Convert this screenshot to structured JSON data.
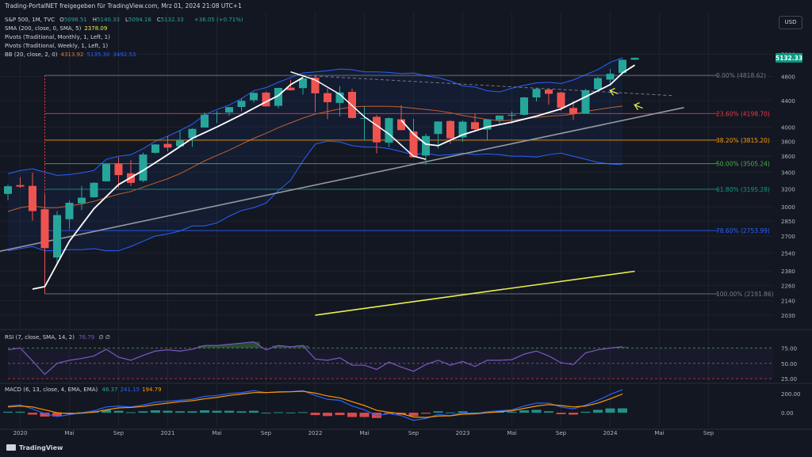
{
  "topbar": {
    "text": "Trading-PortalNET freigegeben für TradingView.com, Mrz 01, 2024 21:08 UTC+1"
  },
  "currency_button": "USD",
  "header": {
    "symbol": "S&P 500, 1M, TVC",
    "ohlc": [
      {
        "k": "O",
        "v": "5098.51"
      },
      {
        "k": "H",
        "v": "5140.33"
      },
      {
        "k": "L",
        "v": "5094.16"
      },
      {
        "k": "C",
        "v": "5132.33"
      }
    ],
    "change": "+36.05 (+0.71%)",
    "indicators": [
      {
        "label": "SMA (200, close, 0, SMA, 5)",
        "values": [
          {
            "v": "2378.09",
            "color": "#e8f04a"
          }
        ]
      },
      {
        "label": "Pivots (Traditional, Monthly, 1, Left, 1)",
        "values": []
      },
      {
        "label": "Pivots (Traditional, Weekly, 1, Left, 1)",
        "values": []
      },
      {
        "label": "BB (20, close, 2, 0)",
        "values": [
          {
            "v": "4313.92",
            "color": "#e0783c"
          },
          {
            "v": "5135.30",
            "color": "#2962ff"
          },
          {
            "v": "3492.53",
            "color": "#2962ff"
          }
        ]
      }
    ]
  },
  "rsi_header": {
    "label": "RSI (7, close, SMA, 14, 2)",
    "value": "76.79",
    "extra": "∅ ∅"
  },
  "macd_header": {
    "label": "MACD (6, 13, close, 4, EMA, EMA)",
    "values": [
      {
        "v": "46.37",
        "color": "#26a69a"
      },
      {
        "v": "241.15",
        "color": "#2962ff"
      },
      {
        "v": "194.79",
        "color": "#ff9800"
      }
    ]
  },
  "brand": "TradingView",
  "colors": {
    "up": "#26a69a",
    "down": "#ef5350",
    "background": "#131722",
    "grid": "#1e222d"
  },
  "chart_data": {
    "type": "candlestick",
    "symbol": "S&P 500",
    "interval": "1M",
    "y_scale": "log",
    "ylim": [
      1950,
      5560
    ],
    "y_ticks": [
      2030,
      2140,
      2260,
      2380,
      2540,
      2700,
      2850,
      3000,
      3200,
      3400,
      3600,
      3800,
      4000,
      4400,
      4800,
      5200
    ],
    "last_price": "5132.33",
    "x_labels": [
      "2020",
      "Mai",
      "Sep",
      "2021",
      "Mai",
      "Sep",
      "2022",
      "Mai",
      "Sep",
      "2023",
      "Mai",
      "Sep",
      "2024",
      "Mai",
      "Sep"
    ],
    "candles": [
      {
        "d": "2019-12",
        "o": 3143,
        "h": 3248,
        "l": 3070,
        "c": 3231
      },
      {
        "d": "2020-01",
        "o": 3244,
        "h": 3337,
        "l": 3214,
        "c": 3226
      },
      {
        "d": "2020-02",
        "o": 3235,
        "h": 3394,
        "l": 2855,
        "c": 2954
      },
      {
        "d": "2020-03",
        "o": 2974,
        "h": 3136,
        "l": 2192,
        "c": 2585
      },
      {
        "d": "2020-04",
        "o": 2499,
        "h": 2954,
        "l": 2447,
        "c": 2912
      },
      {
        "d": "2020-05",
        "o": 2869,
        "h": 3068,
        "l": 2767,
        "c": 3044
      },
      {
        "d": "2020-06",
        "o": 3038,
        "h": 3233,
        "l": 2965,
        "c": 3100
      },
      {
        "d": "2020-07",
        "o": 3105,
        "h": 3279,
        "l": 3101,
        "c": 3271
      },
      {
        "d": "2020-08",
        "o": 3289,
        "h": 3514,
        "l": 3284,
        "c": 3500
      },
      {
        "d": "2020-09",
        "o": 3508,
        "h": 3588,
        "l": 3209,
        "c": 3363
      },
      {
        "d": "2020-10",
        "o": 3385,
        "h": 3549,
        "l": 3233,
        "c": 3270
      },
      {
        "d": "2020-11",
        "o": 3296,
        "h": 3646,
        "l": 3279,
        "c": 3622
      },
      {
        "d": "2020-12",
        "o": 3645,
        "h": 3760,
        "l": 3633,
        "c": 3756
      },
      {
        "d": "2021-01",
        "o": 3764,
        "h": 3870,
        "l": 3662,
        "c": 3714
      },
      {
        "d": "2021-02",
        "o": 3731,
        "h": 3950,
        "l": 3725,
        "c": 3811
      },
      {
        "d": "2021-03",
        "o": 3842,
        "h": 3983,
        "l": 3723,
        "c": 3973
      },
      {
        "d": "2021-04",
        "o": 3992,
        "h": 4218,
        "l": 3992,
        "c": 4181
      },
      {
        "d": "2021-05",
        "o": 4192,
        "h": 4238,
        "l": 4056,
        "c": 4204
      },
      {
        "d": "2021-06",
        "o": 4216,
        "h": 4302,
        "l": 4164,
        "c": 4297
      },
      {
        "d": "2021-07",
        "o": 4300,
        "h": 4429,
        "l": 4233,
        "c": 4395
      },
      {
        "d": "2021-08",
        "o": 4406,
        "h": 4537,
        "l": 4367,
        "c": 4523
      },
      {
        "d": "2021-09",
        "o": 4528,
        "h": 4546,
        "l": 4305,
        "c": 4308
      },
      {
        "d": "2021-10",
        "o": 4317,
        "h": 4608,
        "l": 4279,
        "c": 4605
      },
      {
        "d": "2021-11",
        "o": 4610,
        "h": 4743,
        "l": 4560,
        "c": 4567
      },
      {
        "d": "2021-12",
        "o": 4602,
        "h": 4808,
        "l": 4495,
        "c": 4766
      },
      {
        "d": "2022-01",
        "o": 4779,
        "h": 4818,
        "l": 4222,
        "c": 4516
      },
      {
        "d": "2022-02",
        "o": 4519,
        "h": 4595,
        "l": 4115,
        "c": 4374
      },
      {
        "d": "2022-03",
        "o": 4363,
        "h": 4637,
        "l": 4157,
        "c": 4530
      },
      {
        "d": "2022-04",
        "o": 4540,
        "h": 4593,
        "l": 4124,
        "c": 4132
      },
      {
        "d": "2022-05",
        "o": 4131,
        "h": 4307,
        "l": 3811,
        "c": 4132
      },
      {
        "d": "2022-06",
        "o": 4149,
        "h": 4177,
        "l": 3637,
        "c": 3785
      },
      {
        "d": "2022-07",
        "o": 3781,
        "h": 4140,
        "l": 3721,
        "c": 4130
      },
      {
        "d": "2022-08",
        "o": 4113,
        "h": 4325,
        "l": 3955,
        "c": 3955
      },
      {
        "d": "2022-09",
        "o": 3936,
        "h": 4119,
        "l": 3584,
        "c": 3586
      },
      {
        "d": "2022-10",
        "o": 3609,
        "h": 3905,
        "l": 3491,
        "c": 3872
      },
      {
        "d": "2022-11",
        "o": 3901,
        "h": 4080,
        "l": 3698,
        "c": 4080
      },
      {
        "d": "2022-12",
        "o": 4087,
        "h": 4101,
        "l": 3764,
        "c": 3840
      },
      {
        "d": "2023-01",
        "o": 3853,
        "h": 4095,
        "l": 3795,
        "c": 4077
      },
      {
        "d": "2023-02",
        "o": 4070,
        "h": 4195,
        "l": 3943,
        "c": 3970
      },
      {
        "d": "2023-03",
        "o": 3963,
        "h": 4111,
        "l": 3809,
        "c": 4109
      },
      {
        "d": "2023-04",
        "o": 4102,
        "h": 4170,
        "l": 4049,
        "c": 4169
      },
      {
        "d": "2023-05",
        "o": 4166,
        "h": 4232,
        "l": 4048,
        "c": 4180
      },
      {
        "d": "2023-06",
        "o": 4180,
        "h": 4458,
        "l": 4167,
        "c": 4450
      },
      {
        "d": "2023-07",
        "o": 4450,
        "h": 4607,
        "l": 4385,
        "c": 4589
      },
      {
        "d": "2023-08",
        "o": 4578,
        "h": 4584,
        "l": 4335,
        "c": 4508
      },
      {
        "d": "2023-09",
        "o": 4530,
        "h": 4541,
        "l": 4238,
        "c": 4288
      },
      {
        "d": "2023-10",
        "o": 4284,
        "h": 4393,
        "l": 4103,
        "c": 4194
      },
      {
        "d": "2023-11",
        "o": 4201,
        "h": 4587,
        "l": 4198,
        "c": 4568
      },
      {
        "d": "2023-12",
        "o": 4581,
        "h": 4793,
        "l": 4547,
        "c": 4770
      },
      {
        "d": "2024-01",
        "o": 4745,
        "h": 4931,
        "l": 4682,
        "c": 4846
      },
      {
        "d": "2024-02",
        "o": 4861,
        "h": 5111,
        "l": 4854,
        "c": 5096
      },
      {
        "d": "2024-03",
        "o": 5098,
        "h": 5140,
        "l": 5094,
        "c": 5132
      }
    ],
    "fibonacci": [
      {
        "label": "0.00% (4818.62)",
        "value": 4818.62,
        "color": "#787b86"
      },
      {
        "label": "23.60% (4198.70)",
        "value": 4198.7,
        "color": "#f23645"
      },
      {
        "label": "38.20% (3815.20)",
        "value": 3815.2,
        "color": "#ff9800"
      },
      {
        "label": "50.00% (3505.24)",
        "value": 3505.24,
        "color": "#4caf50"
      },
      {
        "label": "61.80% (3195.28)",
        "value": 3195.28,
        "color": "#089981"
      },
      {
        "label": "78.60% (2753.99)",
        "value": 2753.99,
        "color": "#2962ff"
      },
      {
        "label": "100.00% (2191.86)",
        "value": 2191.86,
        "color": "#787b86"
      }
    ],
    "bb_upper": [
      3380,
      3420,
      3440,
      3400,
      3360,
      3370,
      3390,
      3420,
      3560,
      3600,
      3620,
      3700,
      3800,
      3870,
      3950,
      4040,
      4180,
      4260,
      4330,
      4430,
      4560,
      4610,
      4700,
      4780,
      4860,
      4880,
      4900,
      4930,
      4920,
      4880,
      4880,
      4870,
      4850,
      4860,
      4810,
      4780,
      4720,
      4640,
      4620,
      4560,
      4540,
      4600,
      4650,
      4690,
      4700,
      4680,
      4740,
      4830,
      4920,
      5050,
      5135
    ],
    "bb_mid": [
      2950,
      2990,
      3010,
      2990,
      2990,
      3010,
      3030,
      3060,
      3100,
      3140,
      3170,
      3220,
      3270,
      3320,
      3380,
      3460,
      3540,
      3610,
      3680,
      3760,
      3840,
      3910,
      3990,
      4060,
      4130,
      4190,
      4230,
      4270,
      4300,
      4310,
      4310,
      4310,
      4300,
      4280,
      4260,
      4240,
      4210,
      4170,
      4140,
      4110,
      4090,
      4100,
      4120,
      4140,
      4160,
      4170,
      4190,
      4230,
      4260,
      4290,
      4314
    ],
    "bb_lower": [
      2560,
      2580,
      2600,
      2560,
      2560,
      2570,
      2570,
      2580,
      2560,
      2560,
      2600,
      2650,
      2700,
      2720,
      2750,
      2800,
      2800,
      2830,
      2900,
      2960,
      2990,
      3040,
      3180,
      3300,
      3540,
      3760,
      3800,
      3790,
      3740,
      3720,
      3720,
      3700,
      3660,
      3620,
      3640,
      3610,
      3620,
      3640,
      3620,
      3630,
      3620,
      3600,
      3600,
      3590,
      3620,
      3640,
      3600,
      3560,
      3520,
      3500,
      3493
    ],
    "sma200_line": {
      "start": {
        "d": "2022-01",
        "v": 2030
      },
      "end": {
        "d": "2024-03",
        "v": 2378.09
      }
    },
    "trendline": {
      "start": {
        "d": "2018-12",
        "v": 2300
      },
      "end": {
        "d": "2024-07",
        "v": 4290
      }
    },
    "dashed_line": {
      "start": {
        "d": "2021-12",
        "v": 4818
      },
      "end": {
        "d": "2024-06",
        "v": 4480
      }
    },
    "rsi": {
      "ylim": [
        20,
        100
      ],
      "ticks": [
        25,
        50,
        75
      ],
      "values": [
        72,
        75,
        54,
        32,
        50,
        55,
        58,
        62,
        73,
        60,
        55,
        63,
        70,
        72,
        70,
        73,
        79,
        79,
        81,
        83,
        85,
        72,
        79,
        77,
        79,
        57,
        55,
        59,
        47,
        47,
        40,
        52,
        44,
        37,
        48,
        55,
        47,
        53,
        45,
        55,
        55,
        56,
        65,
        70,
        62,
        51,
        48,
        67,
        72,
        75,
        77
      ]
    },
    "macd": {
      "ylim": [
        -140,
        290
      ],
      "ticks": [
        0,
        200
      ],
      "macd": [
        70,
        80,
        40,
        -10,
        -40,
        -20,
        0,
        20,
        60,
        70,
        60,
        80,
        110,
        120,
        130,
        140,
        170,
        180,
        200,
        210,
        230,
        210,
        220,
        220,
        230,
        180,
        140,
        130,
        70,
        30,
        -30,
        -10,
        -30,
        -80,
        -60,
        -20,
        -30,
        0,
        -10,
        10,
        20,
        30,
        70,
        100,
        100,
        60,
        40,
        80,
        130,
        190,
        241
      ],
      "signal": [
        60,
        70,
        60,
        30,
        0,
        -10,
        -5,
        5,
        30,
        50,
        55,
        65,
        85,
        100,
        115,
        125,
        145,
        160,
        180,
        195,
        210,
        210,
        215,
        218,
        224,
        205,
        175,
        155,
        115,
        75,
        25,
        5,
        -10,
        -45,
        -50,
        -35,
        -33,
        -15,
        -12,
        0,
        10,
        20,
        45,
        70,
        85,
        75,
        60,
        70,
        100,
        145,
        195
      ],
      "histogram": [
        10,
        10,
        -20,
        -40,
        -40,
        -10,
        5,
        15,
        30,
        20,
        5,
        15,
        25,
        20,
        15,
        15,
        25,
        20,
        20,
        15,
        20,
        0,
        5,
        2,
        6,
        -25,
        -35,
        -25,
        -45,
        -45,
        -55,
        -15,
        -20,
        -35,
        -10,
        15,
        3,
        15,
        2,
        10,
        10,
        10,
        25,
        30,
        15,
        -15,
        -20,
        10,
        30,
        45,
        46
      ]
    }
  }
}
